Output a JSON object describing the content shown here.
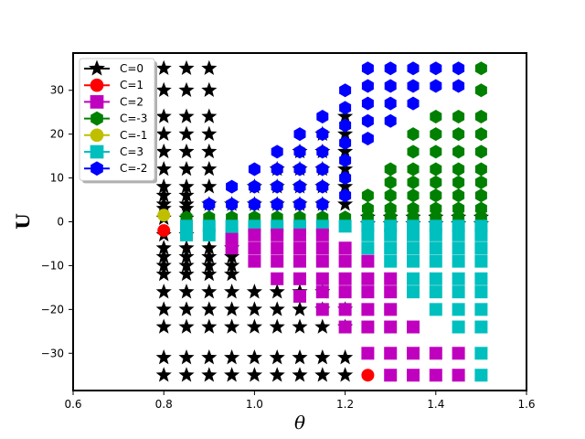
{
  "chart_data": {
    "type": "scatter",
    "xlabel": "θ",
    "ylabel": "U",
    "xlim": [
      0.6,
      1.6
    ],
    "ylim": [
      -38.5,
      38.5
    ],
    "xticks": [
      "0.6",
      "0.8",
      "1.0",
      "1.2",
      "1.4",
      "1.6"
    ],
    "yticks": [
      "−30",
      "−20",
      "−10",
      "0",
      "10",
      "20",
      "30"
    ],
    "grid": false,
    "legend_position": "top-left",
    "x_values": [
      0.8,
      0.85,
      0.9,
      0.95,
      1.0,
      1.05,
      1.1,
      1.15,
      1.2,
      1.25,
      1.3,
      1.35,
      1.4,
      1.45,
      1.5
    ],
    "series": [
      {
        "name": "C=0",
        "marker": "star",
        "color": "#000000"
      },
      {
        "name": "C=1",
        "marker": "circle",
        "color": "#ff0000"
      },
      {
        "name": "C=2",
        "marker": "square",
        "color": "#bf00bf"
      },
      {
        "name": "C=-3",
        "marker": "hexagon",
        "color": "#008000"
      },
      {
        "name": "C=-1",
        "marker": "circle",
        "color": "#bfbf00"
      },
      {
        "name": "C=3",
        "marker": "square",
        "color": "#00bfbf"
      },
      {
        "name": "C=-2",
        "marker": "hexagon",
        "color": "#0000ff"
      }
    ]
  }
}
